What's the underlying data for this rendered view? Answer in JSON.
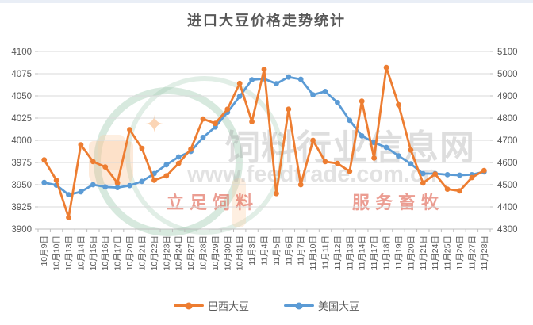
{
  "page": {
    "title": "进口大豆价格走势统计"
  },
  "watermark": {
    "site_name": "饲料行业信息网",
    "site_url": "www.feedtrade.com.cn",
    "slogan_left": "立足饲料",
    "slogan_right": "服务畜牧",
    "sparkle": "✦"
  },
  "colors": {
    "brazil": "#ED7D31",
    "us": "#5B9BD5",
    "grid": "#d9d9d9",
    "axis_line": "#bfbfbf",
    "axis_text": "#595959",
    "title_text": "#595959"
  },
  "chart_data": {
    "type": "line",
    "title": "进口大豆价格走势统计",
    "categories": [
      "10月9日",
      "10月10日",
      "10月13日",
      "10月14日",
      "10月15日",
      "10月16日",
      "10月17日",
      "10月20日",
      "10月21日",
      "10月22日",
      "10月23日",
      "10月24日",
      "10月27日",
      "10月28日",
      "10月29日",
      "10月30日",
      "10月31日",
      "11月3日",
      "11月4日",
      "11月5日",
      "11月6日",
      "11月7日",
      "11月10日",
      "11月11日",
      "11月12日",
      "11月13日",
      "11月14日",
      "11月17日",
      "11月18日",
      "11月19日",
      "11月20日",
      "11月21日",
      "11月24日",
      "11月25日",
      "11月26日",
      "11月27日",
      "11月28日"
    ],
    "series": [
      {
        "name": "巴西大豆",
        "axis": "left",
        "color": "#ED7D31",
        "values": [
          3978,
          3955,
          3913,
          3995,
          3976,
          3970,
          3952,
          4012,
          3991,
          3955,
          3960,
          3974,
          3990,
          4024,
          4019,
          4035,
          4064,
          4021,
          4080,
          3940,
          4035,
          3950,
          4000,
          3976,
          3974,
          3965,
          4044,
          3980,
          4082,
          4040,
          3989,
          3952,
          3962,
          3945,
          3943,
          3958,
          3966
        ]
      },
      {
        "name": "美国大豆",
        "axis": "right",
        "color": "#5B9BD5",
        "values": [
          4510,
          4498,
          4455,
          4468,
          4500,
          4490,
          4487,
          4496,
          4515,
          4550,
          4590,
          4625,
          4650,
          4713,
          4760,
          4826,
          4898,
          4973,
          4977,
          4955,
          4985,
          4975,
          4905,
          4920,
          4870,
          4790,
          4720,
          4690,
          4668,
          4630,
          4594,
          4550,
          4550,
          4545,
          4543,
          4545,
          4558
        ]
      }
    ],
    "left_axis": {
      "min": 3900,
      "max": 4100,
      "step": 25,
      "tick_labels": [
        "4100",
        "4075",
        "4050",
        "4025",
        "4000",
        "3975",
        "3950",
        "3925",
        "3900"
      ]
    },
    "right_axis": {
      "min": 4300,
      "max": 5100,
      "step": 100,
      "tick_labels": [
        "5100",
        "5000",
        "4900",
        "4800",
        "4700",
        "4600",
        "4500",
        "4400",
        "4300"
      ]
    },
    "grid": true,
    "legend_position": "bottom"
  }
}
